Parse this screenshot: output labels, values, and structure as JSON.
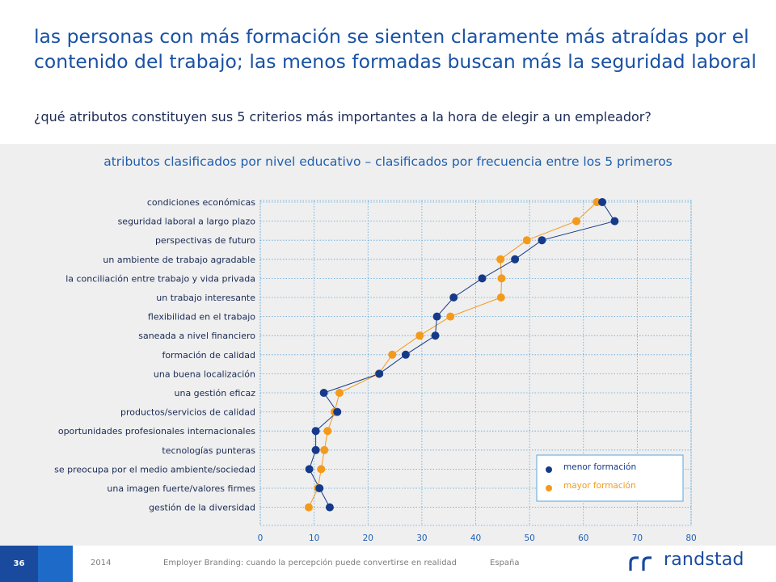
{
  "title": "las personas con más formación se sienten claramente más atraídas por el contenido del trabajo; las menos formadas buscan más la seguridad laboral",
  "question": "¿qué atributos constituyen sus 5 criterios más importantes a la hora de elegir a un empleador?",
  "chart_data": {
    "type": "scatter",
    "title": "atributos clasificados por nivel educativo – clasificados por frecuencia entre los 5 primeros",
    "categories": [
      "condiciones económicas",
      "seguridad laboral a largo plazo",
      "perspectivas de futuro",
      "un ambiente de trabajo agradable",
      "la conciliación entre trabajo y vida privada",
      "un trabajo interesante",
      "flexibilidad en el trabajo",
      "saneada a nivel financiero",
      "formación de calidad",
      "una buena localización",
      "una gestión eficaz",
      "productos/servicios de calidad",
      "oportunidades profesionales internacionales",
      "tecnologías punteras",
      "se preocupa por el medio ambiente/sociedad",
      "una imagen fuerte/valores firmes",
      "gestión de la diversidad"
    ],
    "series": [
      {
        "name": "menor formación",
        "color": "#163a8a",
        "values": [
          63.5,
          65.8,
          52.3,
          47.3,
          41.2,
          35.9,
          32.8,
          32.5,
          27.0,
          22.1,
          11.8,
          14.3,
          10.3,
          10.3,
          9.1,
          11.0,
          12.9
        ]
      },
      {
        "name": "mayor formación",
        "color": "#f39a1c",
        "values": [
          62.5,
          58.7,
          49.5,
          44.6,
          44.8,
          44.7,
          35.3,
          29.6,
          24.5,
          22.0,
          14.7,
          13.8,
          12.5,
          11.9,
          11.3,
          10.7,
          9.0
        ]
      }
    ],
    "xlim": [
      0,
      80
    ],
    "xticks": [
      0,
      10,
      20,
      30,
      40,
      50,
      60,
      70,
      80
    ],
    "grid": true,
    "legend_position": "bottom-right"
  },
  "footer": {
    "page_number": "36",
    "year": "2014",
    "report": "Employer Branding: cuando la percepción puede convertirse en realidad",
    "country": "España",
    "brand": "randstad"
  }
}
